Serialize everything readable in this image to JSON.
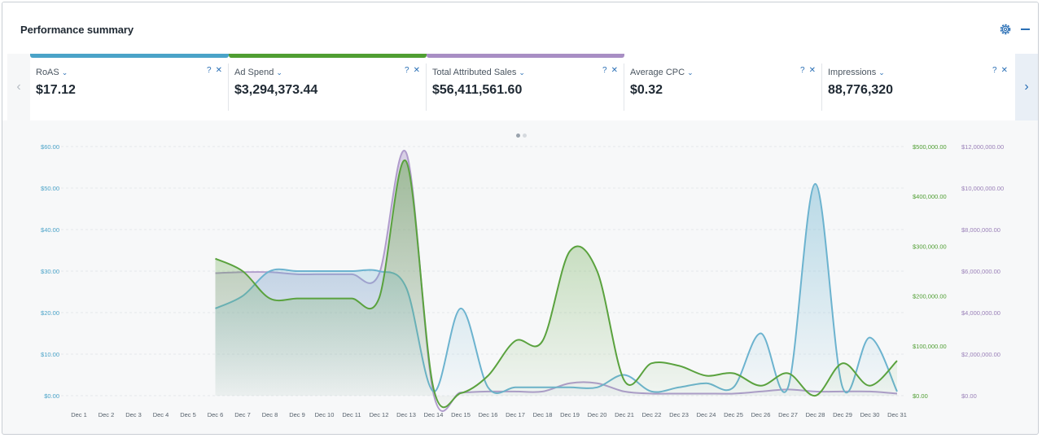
{
  "header": {
    "title": "Performance summary",
    "settings_icon": "gear-icon",
    "collapse_icon": "minus-icon"
  },
  "metrics": [
    {
      "label": "RoAS",
      "value": "$17.12",
      "color": "#4aa3c8"
    },
    {
      "label": "Ad Spend",
      "value": "$3,294,373.44",
      "color": "#4f9e32"
    },
    {
      "label": "Total Attributed Sales",
      "value": "$56,411,561.60",
      "color": "#a88ec4"
    },
    {
      "label": "Average CPC",
      "value": "$0.32",
      "color": null
    },
    {
      "label": "Impressions",
      "value": "88,776,320",
      "color": null
    }
  ],
  "card_icons": {
    "help": "?",
    "close": "✕",
    "chevron": "⌄"
  },
  "carousel": {
    "prev": "‹",
    "next": "›"
  },
  "chart_data": {
    "type": "area",
    "categories": [
      "Dec 1",
      "Dec 2",
      "Dec 3",
      "Dec 4",
      "Dec 5",
      "Dec 6",
      "Dec 7",
      "Dec 8",
      "Dec 9",
      "Dec 10",
      "Dec 11",
      "Dec 12",
      "Dec 13",
      "Dec 14",
      "Dec 15",
      "Dec 16",
      "Dec 17",
      "Dec 18",
      "Dec 19",
      "Dec 20",
      "Dec 21",
      "Dec 22",
      "Dec 23",
      "Dec 24",
      "Dec 25",
      "Dec 26",
      "Dec 27",
      "Dec 28",
      "Dec 29",
      "Dec 30",
      "Dec 31"
    ],
    "axes": {
      "left": {
        "min": 0,
        "max": 60,
        "ticks": [
          "$0.00",
          "$10.00",
          "$20.00",
          "$30.00",
          "$40.00",
          "$50.00",
          "$60.00"
        ],
        "color": "#4aa3c8"
      },
      "right1": {
        "min": 0,
        "max": 500000,
        "ticks": [
          "$0.00",
          "$100,000.00",
          "$200,000.00",
          "$300,000.00",
          "$400,000.00",
          "$500,000.00"
        ],
        "color": "#4f9e32"
      },
      "right2": {
        "min": 0,
        "max": 12000000,
        "ticks": [
          "$0.00",
          "$2,000,000.00",
          "$4,000,000.00",
          "$6,000,000.00",
          "$8,000,000.00",
          "$10,000,000.00",
          "$12,000,000.00"
        ],
        "color": "#9a80b8"
      }
    },
    "grid": true,
    "series": [
      {
        "axis": "left",
        "color": "#6cb3cf",
        "values": [
          null,
          null,
          null,
          null,
          null,
          21,
          24,
          30,
          30,
          30,
          30,
          30,
          26,
          1,
          21,
          2,
          2,
          2,
          2,
          2,
          5,
          1,
          2,
          3,
          2,
          15,
          2,
          51,
          2,
          14,
          1
        ]
      },
      {
        "axis": "right1",
        "color": "#5aa23e",
        "values": [
          null,
          null,
          null,
          null,
          null,
          275000,
          250000,
          195000,
          195000,
          195000,
          195000,
          195000,
          470000,
          15000,
          5000,
          40000,
          110000,
          110000,
          290000,
          250000,
          30000,
          65000,
          60000,
          40000,
          45000,
          20000,
          45000,
          0,
          65000,
          20000,
          70000
        ]
      },
      {
        "axis": "right2",
        "color": "#b09ccc",
        "values": [
          null,
          null,
          null,
          null,
          null,
          5900000,
          5950000,
          5950000,
          5850000,
          5850000,
          5850000,
          5850000,
          11700000,
          100000,
          150000,
          200000,
          200000,
          200000,
          600000,
          600000,
          200000,
          100000,
          100000,
          100000,
          100000,
          200000,
          300000,
          200000,
          200000,
          200000,
          100000
        ]
      }
    ]
  }
}
